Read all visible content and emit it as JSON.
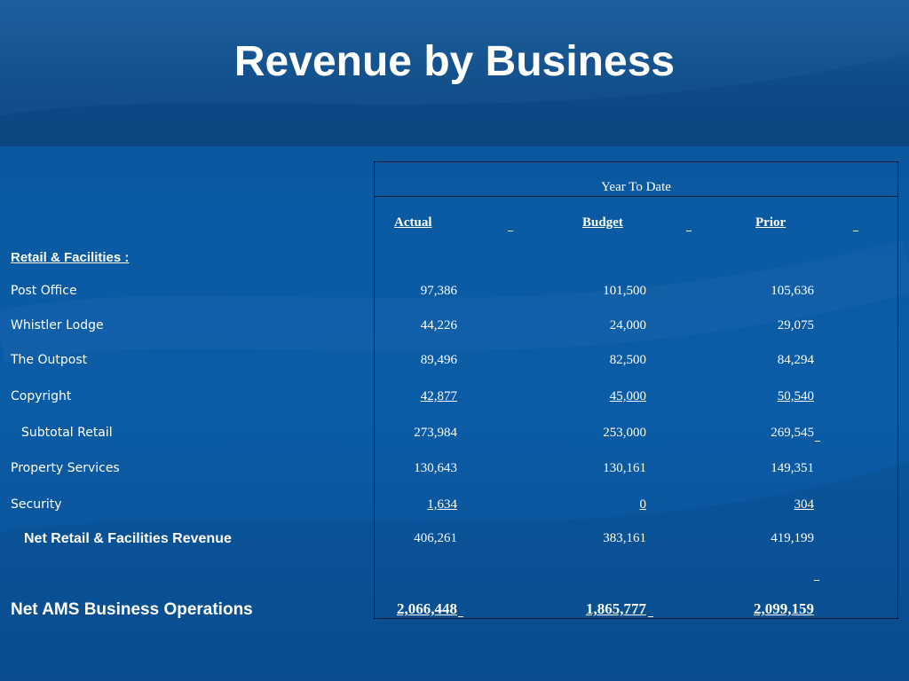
{
  "title": "Revenue by Business",
  "table": {
    "group_header": "Year To Date",
    "columns": [
      "Actual",
      "Budget",
      "Prior"
    ],
    "section_header": "Retail & Facilities :",
    "rows": [
      {
        "label": "Post Office",
        "actual": "97,386",
        "budget": "101,500",
        "prior": "105,636"
      },
      {
        "label": "Whistler Lodge",
        "actual": "44,226",
        "budget": "24,000",
        "prior": "29,075"
      },
      {
        "label": "The Outpost",
        "actual": "89,496",
        "budget": "82,500",
        "prior": "84,294"
      },
      {
        "label": "Copyright",
        "actual": "42,877",
        "budget": "45,000",
        "prior": "50,540"
      },
      {
        "label": "Subtotal Retail",
        "actual": "273,984",
        "budget": "253,000",
        "prior": "269,545"
      },
      {
        "label": "Property Services",
        "actual": "130,643",
        "budget": "130,161",
        "prior": "149,351"
      },
      {
        "label": "Security",
        "actual": "1,634",
        "budget": "0",
        "prior": "304"
      },
      {
        "label": "Net Retail & Facilities Revenue",
        "actual": "406,261",
        "budget": "383,161",
        "prior": "419,199"
      },
      {
        "label": "Net AMS Business Operations",
        "actual": "2,066,448",
        "budget": "1,865,777",
        "prior": "2,099,159"
      }
    ]
  }
}
